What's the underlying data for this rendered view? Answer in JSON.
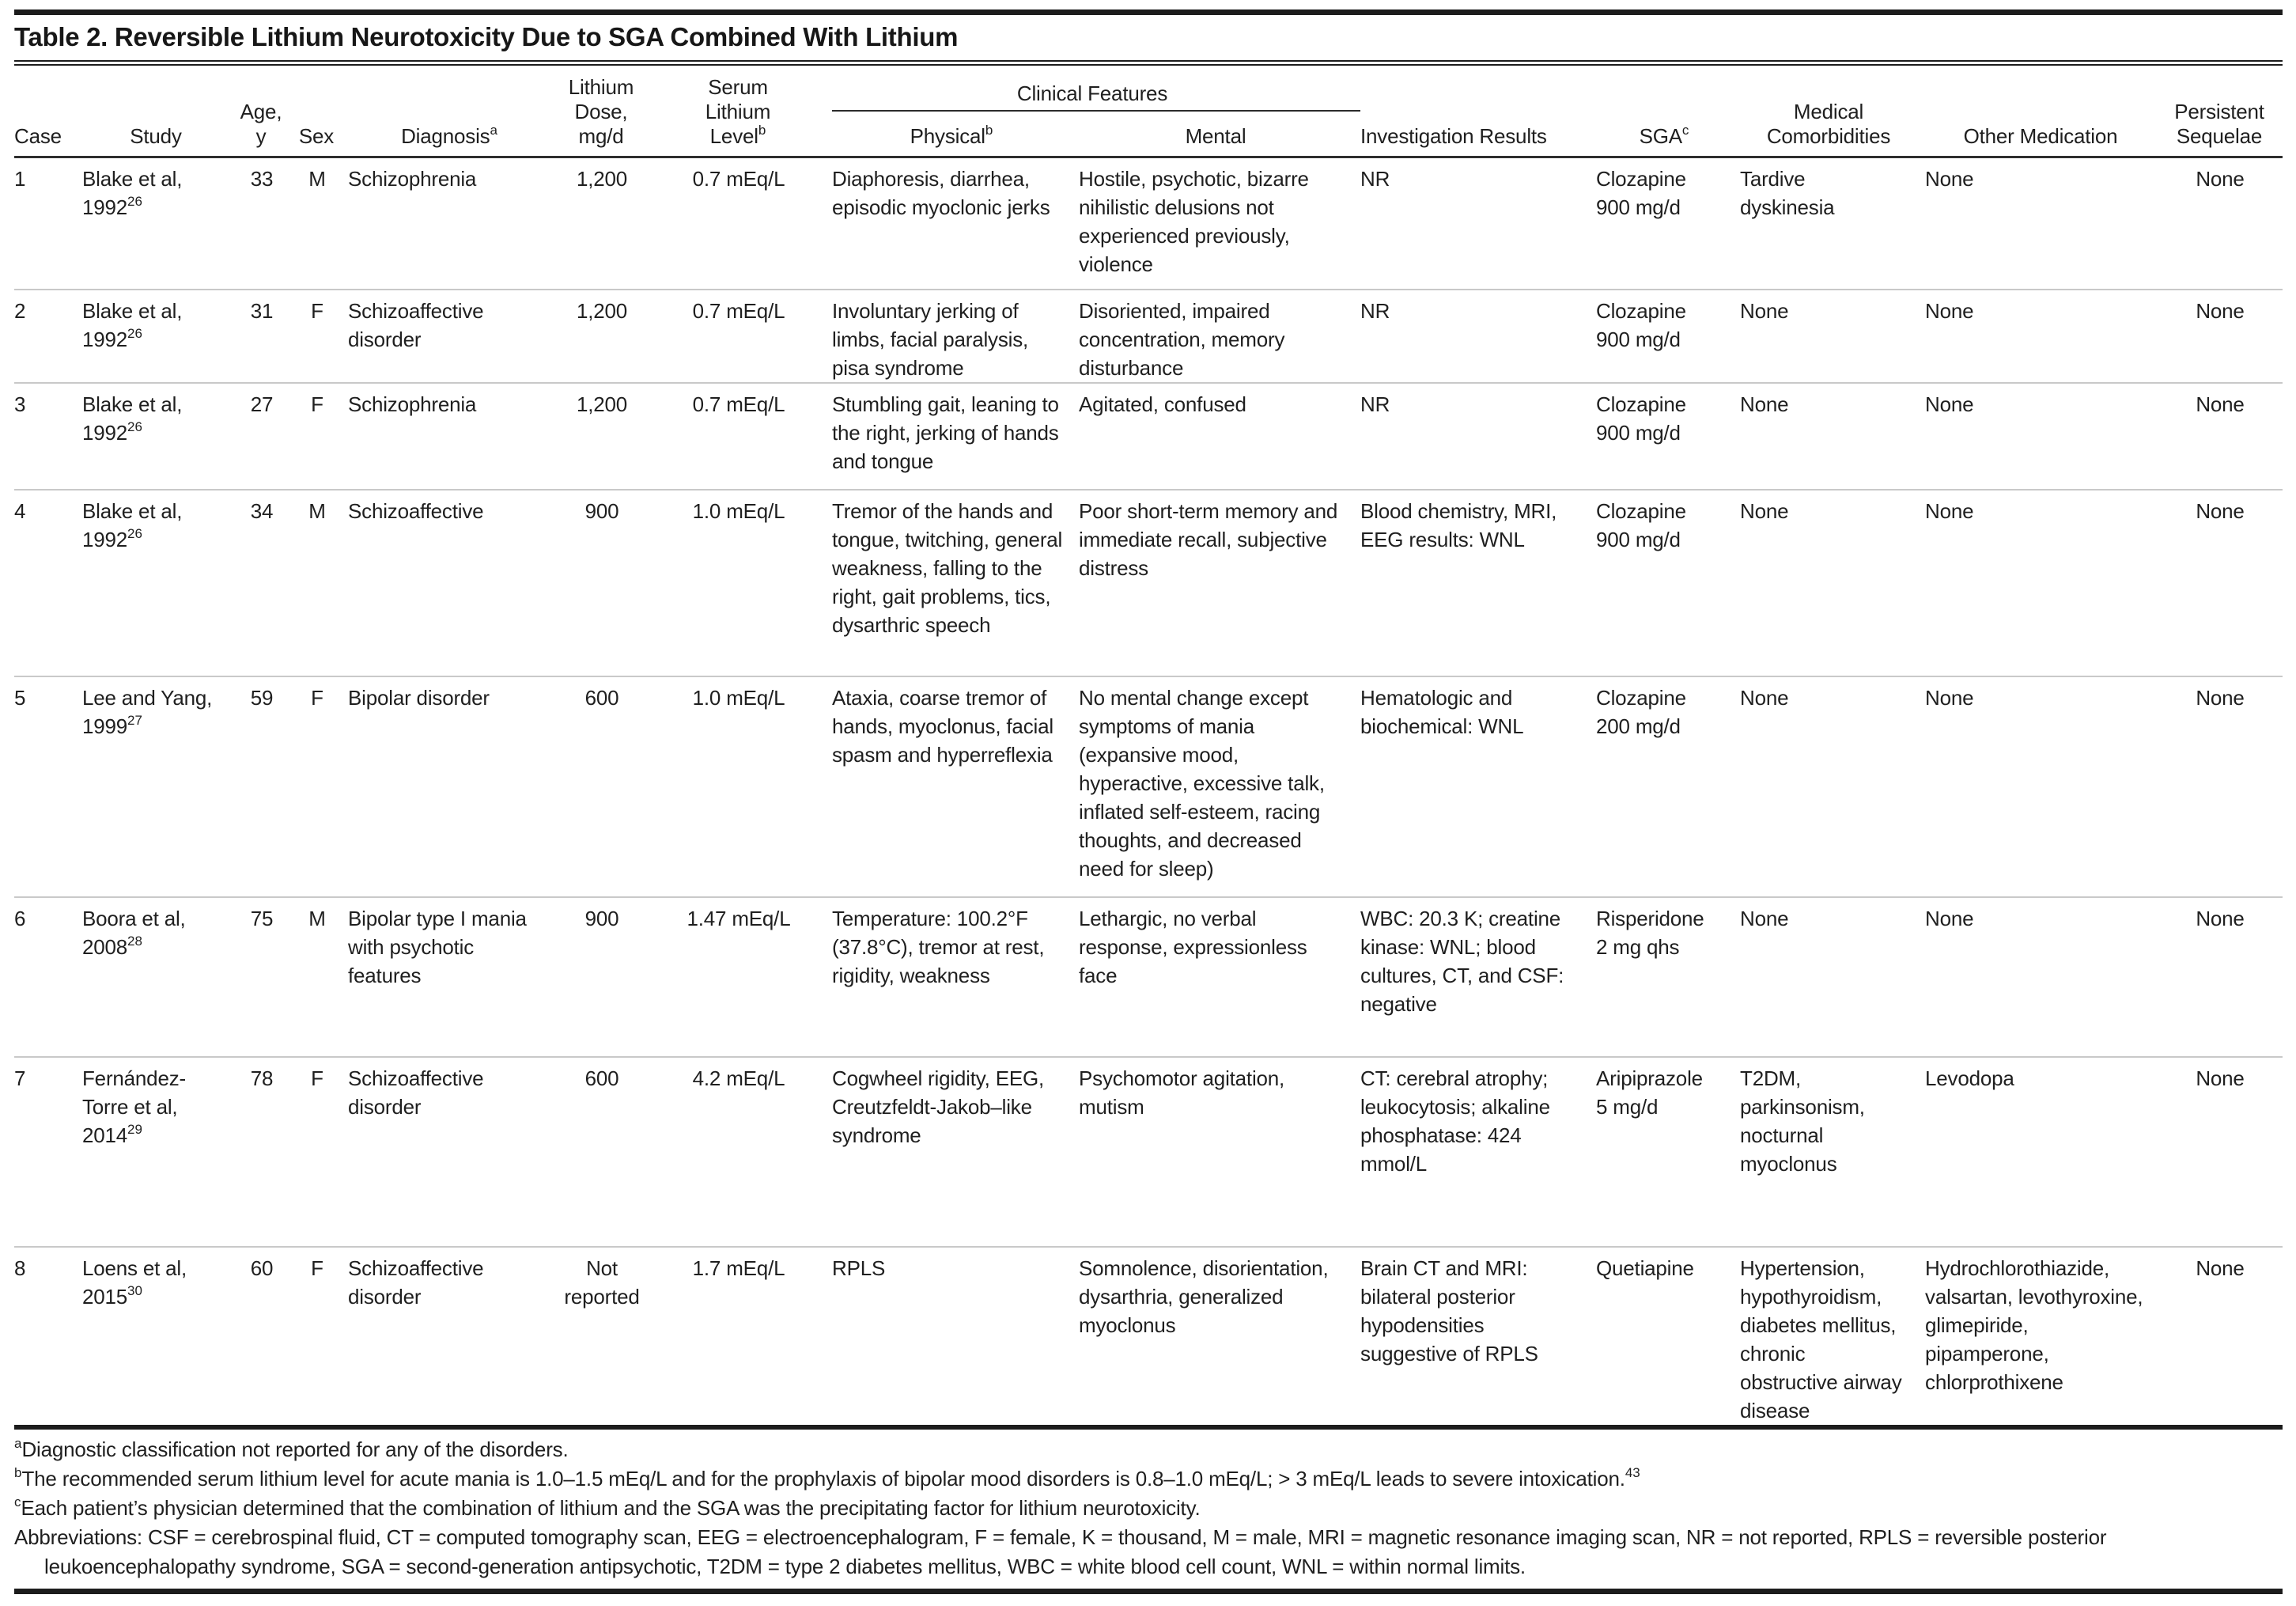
{
  "title": "Table 2. Reversible Lithium Neurotoxicity Due to SGA Combined With Lithium",
  "table": {
    "spanner_label": "Clinical Features",
    "headers": {
      "case": "Case",
      "study": "Study",
      "age": "Age,\ny",
      "sex": "Sex",
      "diagnosis": {
        "text": "Diagnosis",
        "sup": "a"
      },
      "dose": "Lithium\nDose,\nmg/d",
      "serum": {
        "text": "Serum\nLithium\nLevel",
        "sup": "b"
      },
      "physical": {
        "text": "Physical",
        "sup": "b"
      },
      "mental": "Mental",
      "investigation": "Investigation Results",
      "sga": {
        "text": "SGA",
        "sup": "c"
      },
      "comorbidities": "Medical\nComorbidities",
      "other_medication": "Other Medication",
      "sequelae": "Persistent\nSequelae"
    },
    "rows": [
      {
        "case": "1",
        "study": {
          "text": "Blake et al, 1992",
          "sup": "26"
        },
        "age": "33",
        "sex": "M",
        "diagnosis": "Schizophrenia",
        "dose": "1,200",
        "serum": "0.7 mEq/L",
        "physical": "Diaphoresis, diarrhea, episodic myoclonic jerks",
        "mental": "Hostile, psychotic, bizarre nihilistic delusions not experienced previously, violence",
        "investigation": "NR",
        "sga": "Clozapine 900 mg/d",
        "comorbidities": "Tardive dyskinesia",
        "other_medication": "None",
        "sequelae": "None"
      },
      {
        "case": "2",
        "study": {
          "text": "Blake et al, 1992",
          "sup": "26"
        },
        "age": "31",
        "sex": "F",
        "diagnosis": "Schizoaffective disorder",
        "dose": "1,200",
        "serum": "0.7 mEq/L",
        "physical": "Involuntary jerking of limbs, facial paralysis, pisa syndrome",
        "mental": "Disoriented, impaired concentration, memory disturbance",
        "investigation": "NR",
        "sga": "Clozapine 900 mg/d",
        "comorbidities": "None",
        "other_medication": "None",
        "sequelae": "None"
      },
      {
        "case": "3",
        "study": {
          "text": "Blake et al, 1992",
          "sup": "26"
        },
        "age": "27",
        "sex": "F",
        "diagnosis": "Schizophrenia",
        "dose": "1,200",
        "serum": "0.7 mEq/L",
        "physical": "Stumbling gait, leaning to the right, jerking of hands and tongue",
        "mental": "Agitated, confused",
        "investigation": "NR",
        "sga": "Clozapine 900 mg/d",
        "comorbidities": "None",
        "other_medication": "None",
        "sequelae": "None"
      },
      {
        "case": "4",
        "study": {
          "text": "Blake et al, 1992",
          "sup": "26"
        },
        "age": "34",
        "sex": "M",
        "diagnosis": "Schizoaffective",
        "dose": "900",
        "serum": "1.0 mEq/L",
        "physical": "Tremor of the hands and tongue, twitching, general weakness, falling to the right, gait problems, tics, dysarthric speech",
        "mental": "Poor short-term memory and immediate recall, subjective distress",
        "investigation": "Blood chemistry, MRI, EEG results: WNL",
        "sga": "Clozapine 900 mg/d",
        "comorbidities": "None",
        "other_medication": "None",
        "sequelae": "None"
      },
      {
        "case": "5",
        "study": {
          "text": "Lee and Yang, 1999",
          "sup": "27"
        },
        "age": "59",
        "sex": "F",
        "diagnosis": "Bipolar disorder",
        "dose": "600",
        "serum": "1.0 mEq/L",
        "physical": "Ataxia, coarse tremor of hands, myoclonus, facial spasm and hyperreflexia",
        "mental": "No mental change except symptoms of mania (expansive mood, hyperactive, excessive talk, inflated self-esteem, racing thoughts, and decreased need for sleep)",
        "investigation": "Hematologic and biochemical: WNL",
        "sga": "Clozapine 200 mg/d",
        "comorbidities": "None",
        "other_medication": "None",
        "sequelae": "None"
      },
      {
        "case": "6",
        "study": {
          "text": "Boora et al, 2008",
          "sup": "28"
        },
        "age": "75",
        "sex": "M",
        "diagnosis": "Bipolar type I mania with psychotic features",
        "dose": "900",
        "serum": "1.47 mEq/L",
        "physical": "Temperature: 100.2°F (37.8°C), tremor at rest, rigidity, weakness",
        "mental": "Lethargic, no verbal response, expressionless face",
        "investigation": "WBC: 20.3 K; creatine kinase: WNL; blood cultures, CT, and CSF: negative",
        "sga": "Risperidone 2 mg qhs",
        "comorbidities": "None",
        "other_medication": "None",
        "sequelae": "None"
      },
      {
        "case": "7",
        "study": {
          "text": "Fernández-Torre et al, 2014",
          "sup": "29"
        },
        "age": "78",
        "sex": "F",
        "diagnosis": "Schizoaffective disorder",
        "dose": "600",
        "serum": "4.2 mEq/L",
        "physical": "Cogwheel rigidity, EEG, Creutzfeldt-Jakob–like syndrome",
        "mental": "Psychomotor agitation, mutism",
        "investigation": "CT: cerebral atrophy; leukocytosis; alkaline phosphatase: 424 mmol/L",
        "sga": "Aripiprazole 5 mg/d",
        "comorbidities": "T2DM, parkinsonism, nocturnal myoclonus",
        "other_medication": "Levodopa",
        "sequelae": "None"
      },
      {
        "case": "8",
        "study": {
          "text": "Loens et al, 2015",
          "sup": "30"
        },
        "age": "60",
        "sex": "F",
        "diagnosis": "Schizoaffective disorder",
        "dose": "Not reported",
        "serum": "1.7 mEq/L",
        "physical": "RPLS",
        "mental": "Somnolence, disorientation, dysarthria, generalized myoclonus",
        "investigation": "Brain CT and MRI: bilateral posterior hypodensities suggestive of RPLS",
        "sga": "Quetiapine",
        "comorbidities": "Hypertension, hypothyroidism, diabetes mellitus, chronic obstructive airway disease",
        "other_medication": "Hydrochlorothiazide, valsartan, levothyroxine, glimepiride, pipamperone, chlorprothixene",
        "sequelae": "None"
      }
    ]
  },
  "footnotes": [
    {
      "sup": "a",
      "text": "Diagnostic classification not reported for any of the disorders."
    },
    {
      "sup": "b",
      "text": "The recommended serum lithium level for acute mania is 1.0–1.5 mEq/L and for the prophylaxis of bipolar mood disorders is 0.8–1.0 mEq/L; > 3 mEq/L leads to severe intoxication.",
      "end_sup": "43"
    },
    {
      "sup": "c",
      "text": "Each patient’s physician determined that the combination of lithium and the SGA was the precipitating factor for lithium neurotoxicity."
    },
    {
      "sup": "",
      "text": "Abbreviations: CSF = cerebrospinal fluid, CT = computed tomography scan, EEG = electroencephalogram, F = female, K = thousand, M = male, MRI = magnetic resonance imaging scan, NR = not reported, RPLS = reversible posterior leukoencephalopathy syndrome, SGA = second-generation antipsychotic, T2DM = type 2 diabetes mellitus, WBC = white blood cell count, WNL = within normal limits.",
      "hanging": true
    }
  ]
}
